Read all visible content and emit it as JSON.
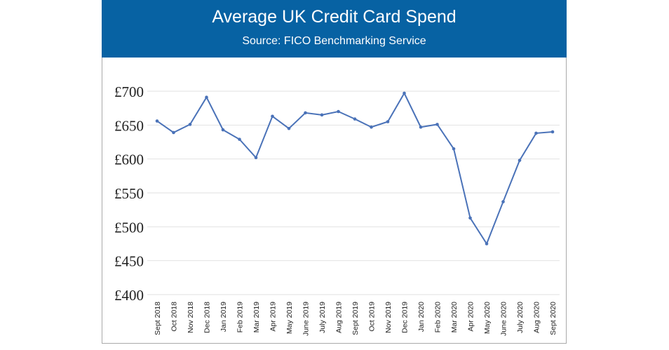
{
  "chart_data": {
    "type": "line",
    "title": "Average UK Credit Card Spend",
    "subtitle": "Source: FICO Benchmarking Service",
    "categories": [
      "Sept 2018",
      "Oct 2018",
      "Nov 2018",
      "Dec 2018",
      "Jan 2019",
      "Feb 2019",
      "Mar 2019",
      "Apr 2019",
      "May 2019",
      "June 2019",
      "July 2019",
      "Aug 2019",
      "Sept 2019",
      "Oct 2019",
      "Nov 2019",
      "Dec 2019",
      "Jan 2020",
      "Feb 2020",
      "Mar 2020",
      "Apr 2020",
      "May 2020",
      "June 2020",
      "July 2020",
      "Aug 2020",
      "Sept 2020"
    ],
    "values": [
      656,
      639,
      651,
      691,
      643,
      629,
      602,
      663,
      645,
      668,
      665,
      670,
      659,
      647,
      655,
      697,
      647,
      651,
      615,
      513,
      475,
      537,
      598,
      638,
      640
    ],
    "ylim": [
      400,
      700
    ],
    "yticks": [
      400,
      450,
      500,
      550,
      600,
      650,
      700
    ],
    "ytick_labels": [
      "£400",
      "£450",
      "£500",
      "£550",
      "£600",
      "£650",
      "£700"
    ],
    "grid": true,
    "line_color": "#4a72b8",
    "header_color": "#0762a3"
  }
}
